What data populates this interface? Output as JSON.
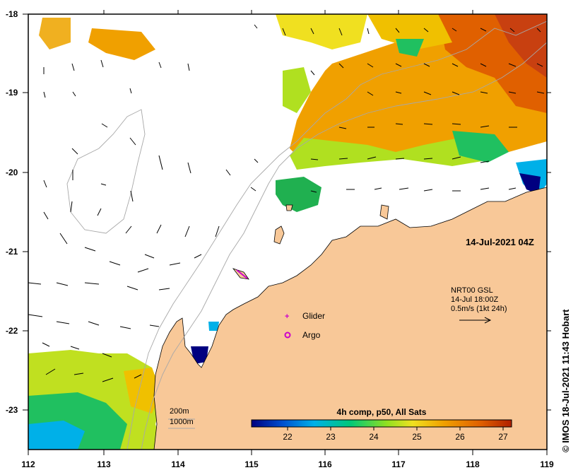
{
  "map": {
    "timestamp": "14-Jul-2021 04Z",
    "credit": "© IMOS 18-Jul-2021 11:43 Hobart",
    "longitude_ticks": [
      "112",
      "113",
      "114",
      "115",
      "116",
      "117",
      "118",
      "119"
    ],
    "latitude_ticks": [
      "-18",
      "-19",
      "-20",
      "-21",
      "-22",
      "-23"
    ],
    "bathymetry_legend": [
      "200m",
      "1000m"
    ],
    "current_legend": {
      "line1": "NRT00 GSL",
      "line2": "14-Jul 18:00Z",
      "line3": "0.5m/s (1kt 24h)"
    },
    "markers": [
      {
        "label": "Glider",
        "symbol": "+",
        "color": "#cc00cc"
      },
      {
        "label": "Argo",
        "symbol": "o",
        "color": "#cc00cc"
      }
    ],
    "colorbar": {
      "title": "4h comp, p50, All Sats",
      "ticks": [
        "22",
        "23",
        "24",
        "25",
        "26",
        "27"
      ],
      "colors": [
        "#000080",
        "#0050d0",
        "#00b0e8",
        "#00c878",
        "#90e020",
        "#f0e020",
        "#f0a000",
        "#e06000",
        "#b02000"
      ]
    },
    "colors": {
      "land": "#f8c898",
      "ocean_no_data": "#ffffff"
    }
  }
}
